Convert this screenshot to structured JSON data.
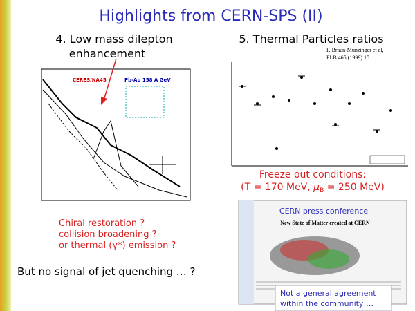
{
  "slide": {
    "title": "Highlights from CERN-SPS (II)",
    "left": {
      "heading": [
        "4. Low mass dilepton",
        "enhancement"
      ],
      "plot_labels": [
        "CERES/NA45",
        "Pb-Au 158 A GeV"
      ],
      "questions": [
        "Chiral restoration ?",
        "collision broadening ?",
        "or thermal (γ*) emission ?"
      ]
    },
    "right": {
      "heading": "5. Thermal Particles ratios",
      "citation": [
        "P. Braun-Munzinger et al,",
        "PLB 465 (1999) 15"
      ],
      "freeze_out": {
        "line1": "Freeze out conditions:",
        "line2": [
          "(T = 170 MeV, ",
          "μ",
          "B",
          " = 250 MeV)"
        ]
      },
      "press": {
        "caption": "CERN press conference",
        "headline": "New State of Matter created at CERN"
      },
      "note": [
        "Not a general agreement",
        "within the community …"
      ]
    },
    "bottom": "But no signal of jet quenching … ?"
  }
}
